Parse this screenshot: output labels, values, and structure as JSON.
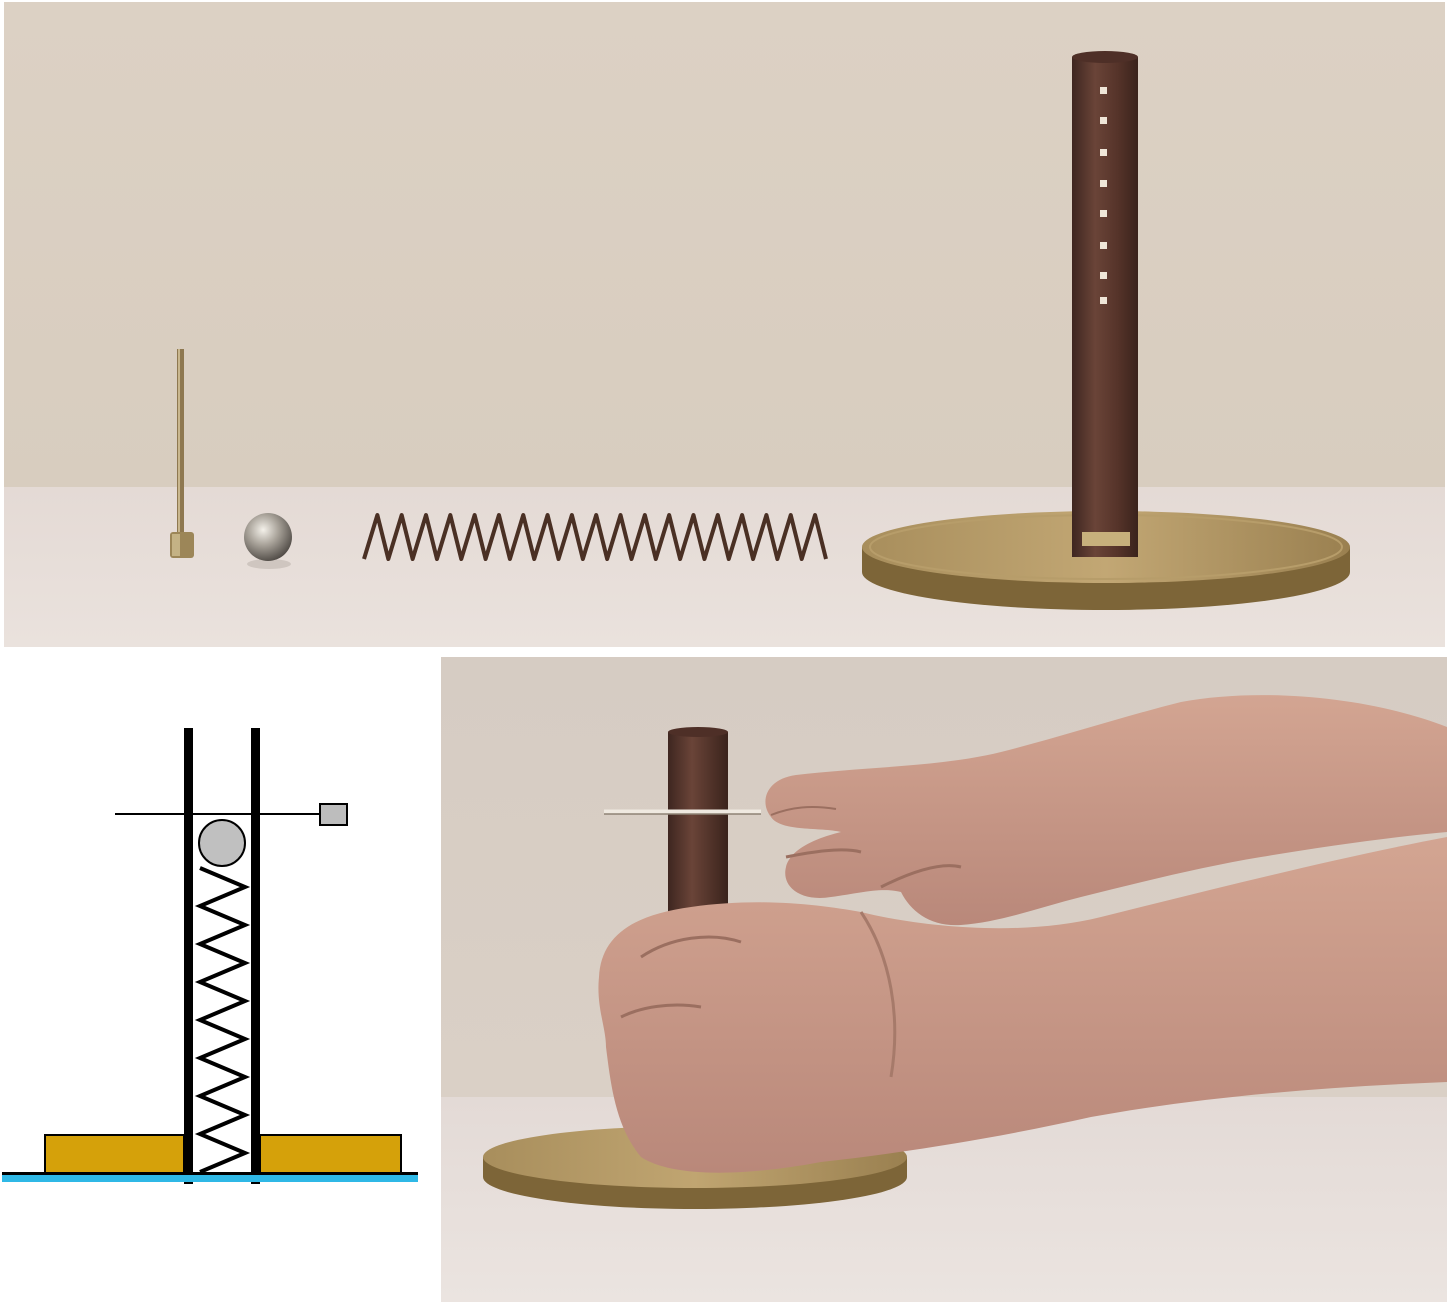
{
  "figure": {
    "panels": [
      {
        "id": "top-photo",
        "kind": "photograph",
        "objects": [
          "pin",
          "steel-ball",
          "coil-spring",
          "tube-with-holes",
          "brass-base-disc"
        ]
      },
      {
        "id": "diagram",
        "kind": "schematic",
        "objects": [
          "tube-walls",
          "spring",
          "ball",
          "pin",
          "pin-handle",
          "base-plate",
          "table-line"
        ]
      },
      {
        "id": "bottom-photo",
        "kind": "photograph",
        "objects": [
          "tube",
          "pin",
          "hands",
          "brass-base-disc"
        ]
      }
    ]
  },
  "colors": {
    "photo_wall": "#ddd2c6",
    "photo_table": "#e6dcd6",
    "tube": "#5a3a32",
    "brass": "#9b8554",
    "ball": "#bfbfbf",
    "base_plate": "#d5a10a",
    "table_line": "#2fb8e6",
    "skin": "#c99a86",
    "spring_photo": "#4a3024"
  }
}
